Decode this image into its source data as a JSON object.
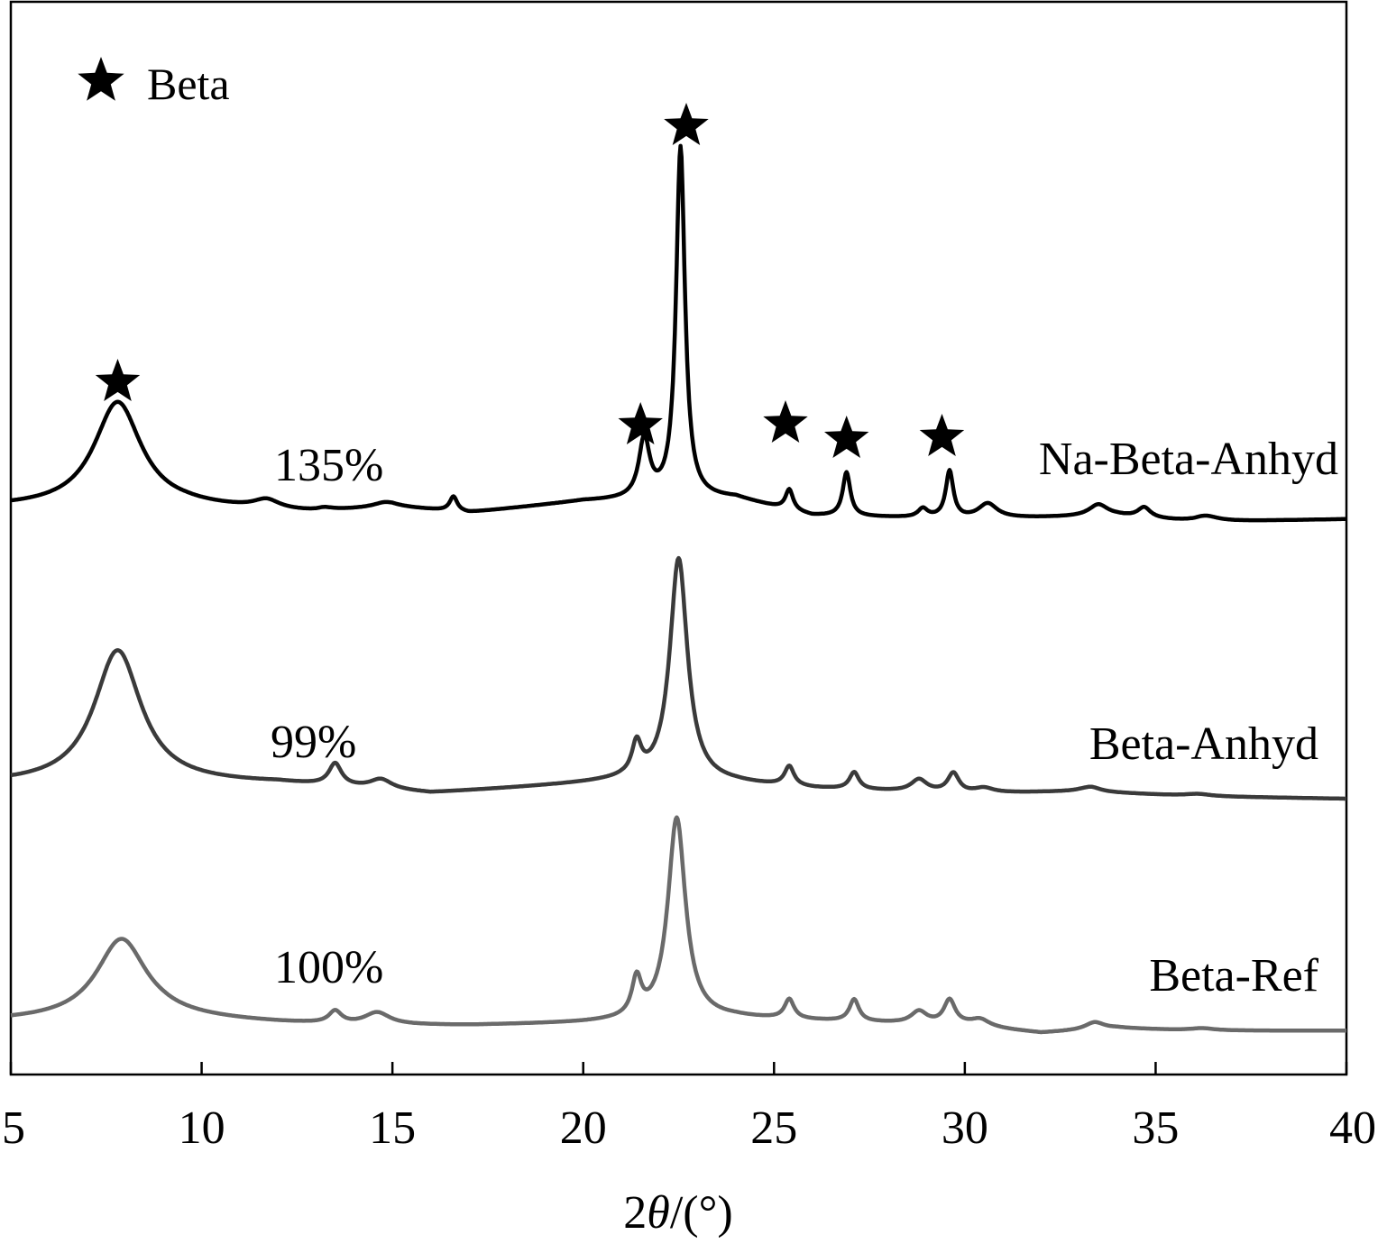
{
  "chart_data": {
    "type": "line",
    "xlabel_prefix": "2",
    "xlabel_theta": "θ",
    "xlabel_suffix": "/(°)",
    "xlim": [
      5,
      40
    ],
    "xticks": [
      5,
      10,
      15,
      20,
      25,
      30,
      35,
      40
    ],
    "xtick_labels": [
      "5",
      "10",
      "15",
      "20",
      "25",
      "30",
      "35",
      "40"
    ],
    "y_axis_ticks": false,
    "legend": {
      "label": "Beta",
      "marker": "star",
      "position": "top-left"
    },
    "series": [
      {
        "name": "Na-Beta-Anhyd",
        "color": "#000000",
        "crystallinity_label": "135%",
        "baseline": [
          [
            5,
            0.0
          ],
          [
            9.6,
            0.0
          ],
          [
            13,
            -0.02
          ],
          [
            15,
            0.0
          ],
          [
            17,
            -0.02
          ],
          [
            20,
            0.02
          ],
          [
            24,
            0.03
          ],
          [
            26,
            -0.03
          ],
          [
            30,
            -0.04
          ],
          [
            34,
            -0.03
          ],
          [
            36,
            -0.05
          ],
          [
            40,
            -0.04
          ]
        ],
        "peaks": [
          {
            "x": 7.8,
            "height": 0.36,
            "width": 0.75
          },
          {
            "x": 11.7,
            "height": 0.03,
            "width": 0.4
          },
          {
            "x": 13.2,
            "height": 0.01,
            "width": 0.3
          },
          {
            "x": 14.8,
            "height": 0.015,
            "width": 0.35
          },
          {
            "x": 16.6,
            "height": 0.05,
            "width": 0.12
          },
          {
            "x": 21.6,
            "height": 0.2,
            "width": 0.17
          },
          {
            "x": 22.55,
            "height": 1.2,
            "width": 0.14
          },
          {
            "x": 25.4,
            "height": 0.07,
            "width": 0.12
          },
          {
            "x": 26.9,
            "height": 0.15,
            "width": 0.12
          },
          {
            "x": 28.9,
            "height": 0.03,
            "width": 0.15
          },
          {
            "x": 29.6,
            "height": 0.16,
            "width": 0.12
          },
          {
            "x": 30.6,
            "height": 0.05,
            "width": 0.3
          },
          {
            "x": 33.5,
            "height": 0.04,
            "width": 0.3
          },
          {
            "x": 34.7,
            "height": 0.035,
            "width": 0.2
          },
          {
            "x": 36.3,
            "height": 0.02,
            "width": 0.4
          }
        ],
        "markers_x": [
          7.8,
          21.5,
          25.3,
          26.9,
          29.4,
          22.7
        ]
      },
      {
        "name": "Beta-Anhyd",
        "color": "#3a3a3a",
        "crystallinity_label": "99%",
        "baseline": [
          [
            5,
            0.0
          ],
          [
            12,
            0.0
          ],
          [
            14,
            -0.02
          ],
          [
            16,
            -0.04
          ],
          [
            18,
            -0.02
          ],
          [
            21,
            0.01
          ],
          [
            24,
            0.0
          ],
          [
            26,
            -0.02
          ],
          [
            30,
            -0.04
          ],
          [
            33,
            -0.03
          ],
          [
            36,
            -0.05
          ],
          [
            40,
            -0.06
          ]
        ],
        "peaks": [
          {
            "x": 7.8,
            "height": 0.55,
            "width": 0.75
          },
          {
            "x": 13.5,
            "height": 0.09,
            "width": 0.2
          },
          {
            "x": 14.7,
            "height": 0.04,
            "width": 0.35
          },
          {
            "x": 21.4,
            "height": 0.13,
            "width": 0.15
          },
          {
            "x": 22.5,
            "height": 0.92,
            "width": 0.28
          },
          {
            "x": 25.4,
            "height": 0.08,
            "width": 0.15
          },
          {
            "x": 27.1,
            "height": 0.07,
            "width": 0.15
          },
          {
            "x": 28.8,
            "height": 0.05,
            "width": 0.25
          },
          {
            "x": 29.7,
            "height": 0.08,
            "width": 0.18
          },
          {
            "x": 30.5,
            "height": 0.02,
            "width": 0.3
          },
          {
            "x": 33.3,
            "height": 0.02,
            "width": 0.3
          },
          {
            "x": 36.1,
            "height": 0.01,
            "width": 0.4
          }
        ]
      },
      {
        "name": "Beta-Ref",
        "color": "#6a6a6a",
        "crystallinity_label": "100%",
        "baseline": [
          [
            5,
            -0.01
          ],
          [
            9,
            0.0
          ],
          [
            12,
            -0.02
          ],
          [
            14,
            -0.03
          ],
          [
            17,
            -0.03
          ],
          [
            20,
            -0.02
          ],
          [
            24,
            0.0
          ],
          [
            26,
            -0.01
          ],
          [
            30,
            -0.03
          ],
          [
            32,
            -0.06
          ],
          [
            34,
            -0.04
          ],
          [
            36,
            -0.05
          ],
          [
            40,
            -0.05
          ]
        ],
        "peaks": [
          {
            "x": 7.9,
            "height": 0.33,
            "width": 0.8
          },
          {
            "x": 13.5,
            "height": 0.05,
            "width": 0.2
          },
          {
            "x": 14.6,
            "height": 0.05,
            "width": 0.4
          },
          {
            "x": 21.4,
            "height": 0.15,
            "width": 0.15
          },
          {
            "x": 22.45,
            "height": 0.83,
            "width": 0.28
          },
          {
            "x": 25.4,
            "height": 0.08,
            "width": 0.15
          },
          {
            "x": 27.1,
            "height": 0.09,
            "width": 0.15
          },
          {
            "x": 28.8,
            "height": 0.05,
            "width": 0.25
          },
          {
            "x": 29.6,
            "height": 0.1,
            "width": 0.18
          },
          {
            "x": 30.4,
            "height": 0.03,
            "width": 0.3
          },
          {
            "x": 33.4,
            "height": 0.03,
            "width": 0.3
          },
          {
            "x": 36.2,
            "height": 0.01,
            "width": 0.4
          }
        ]
      }
    ]
  }
}
